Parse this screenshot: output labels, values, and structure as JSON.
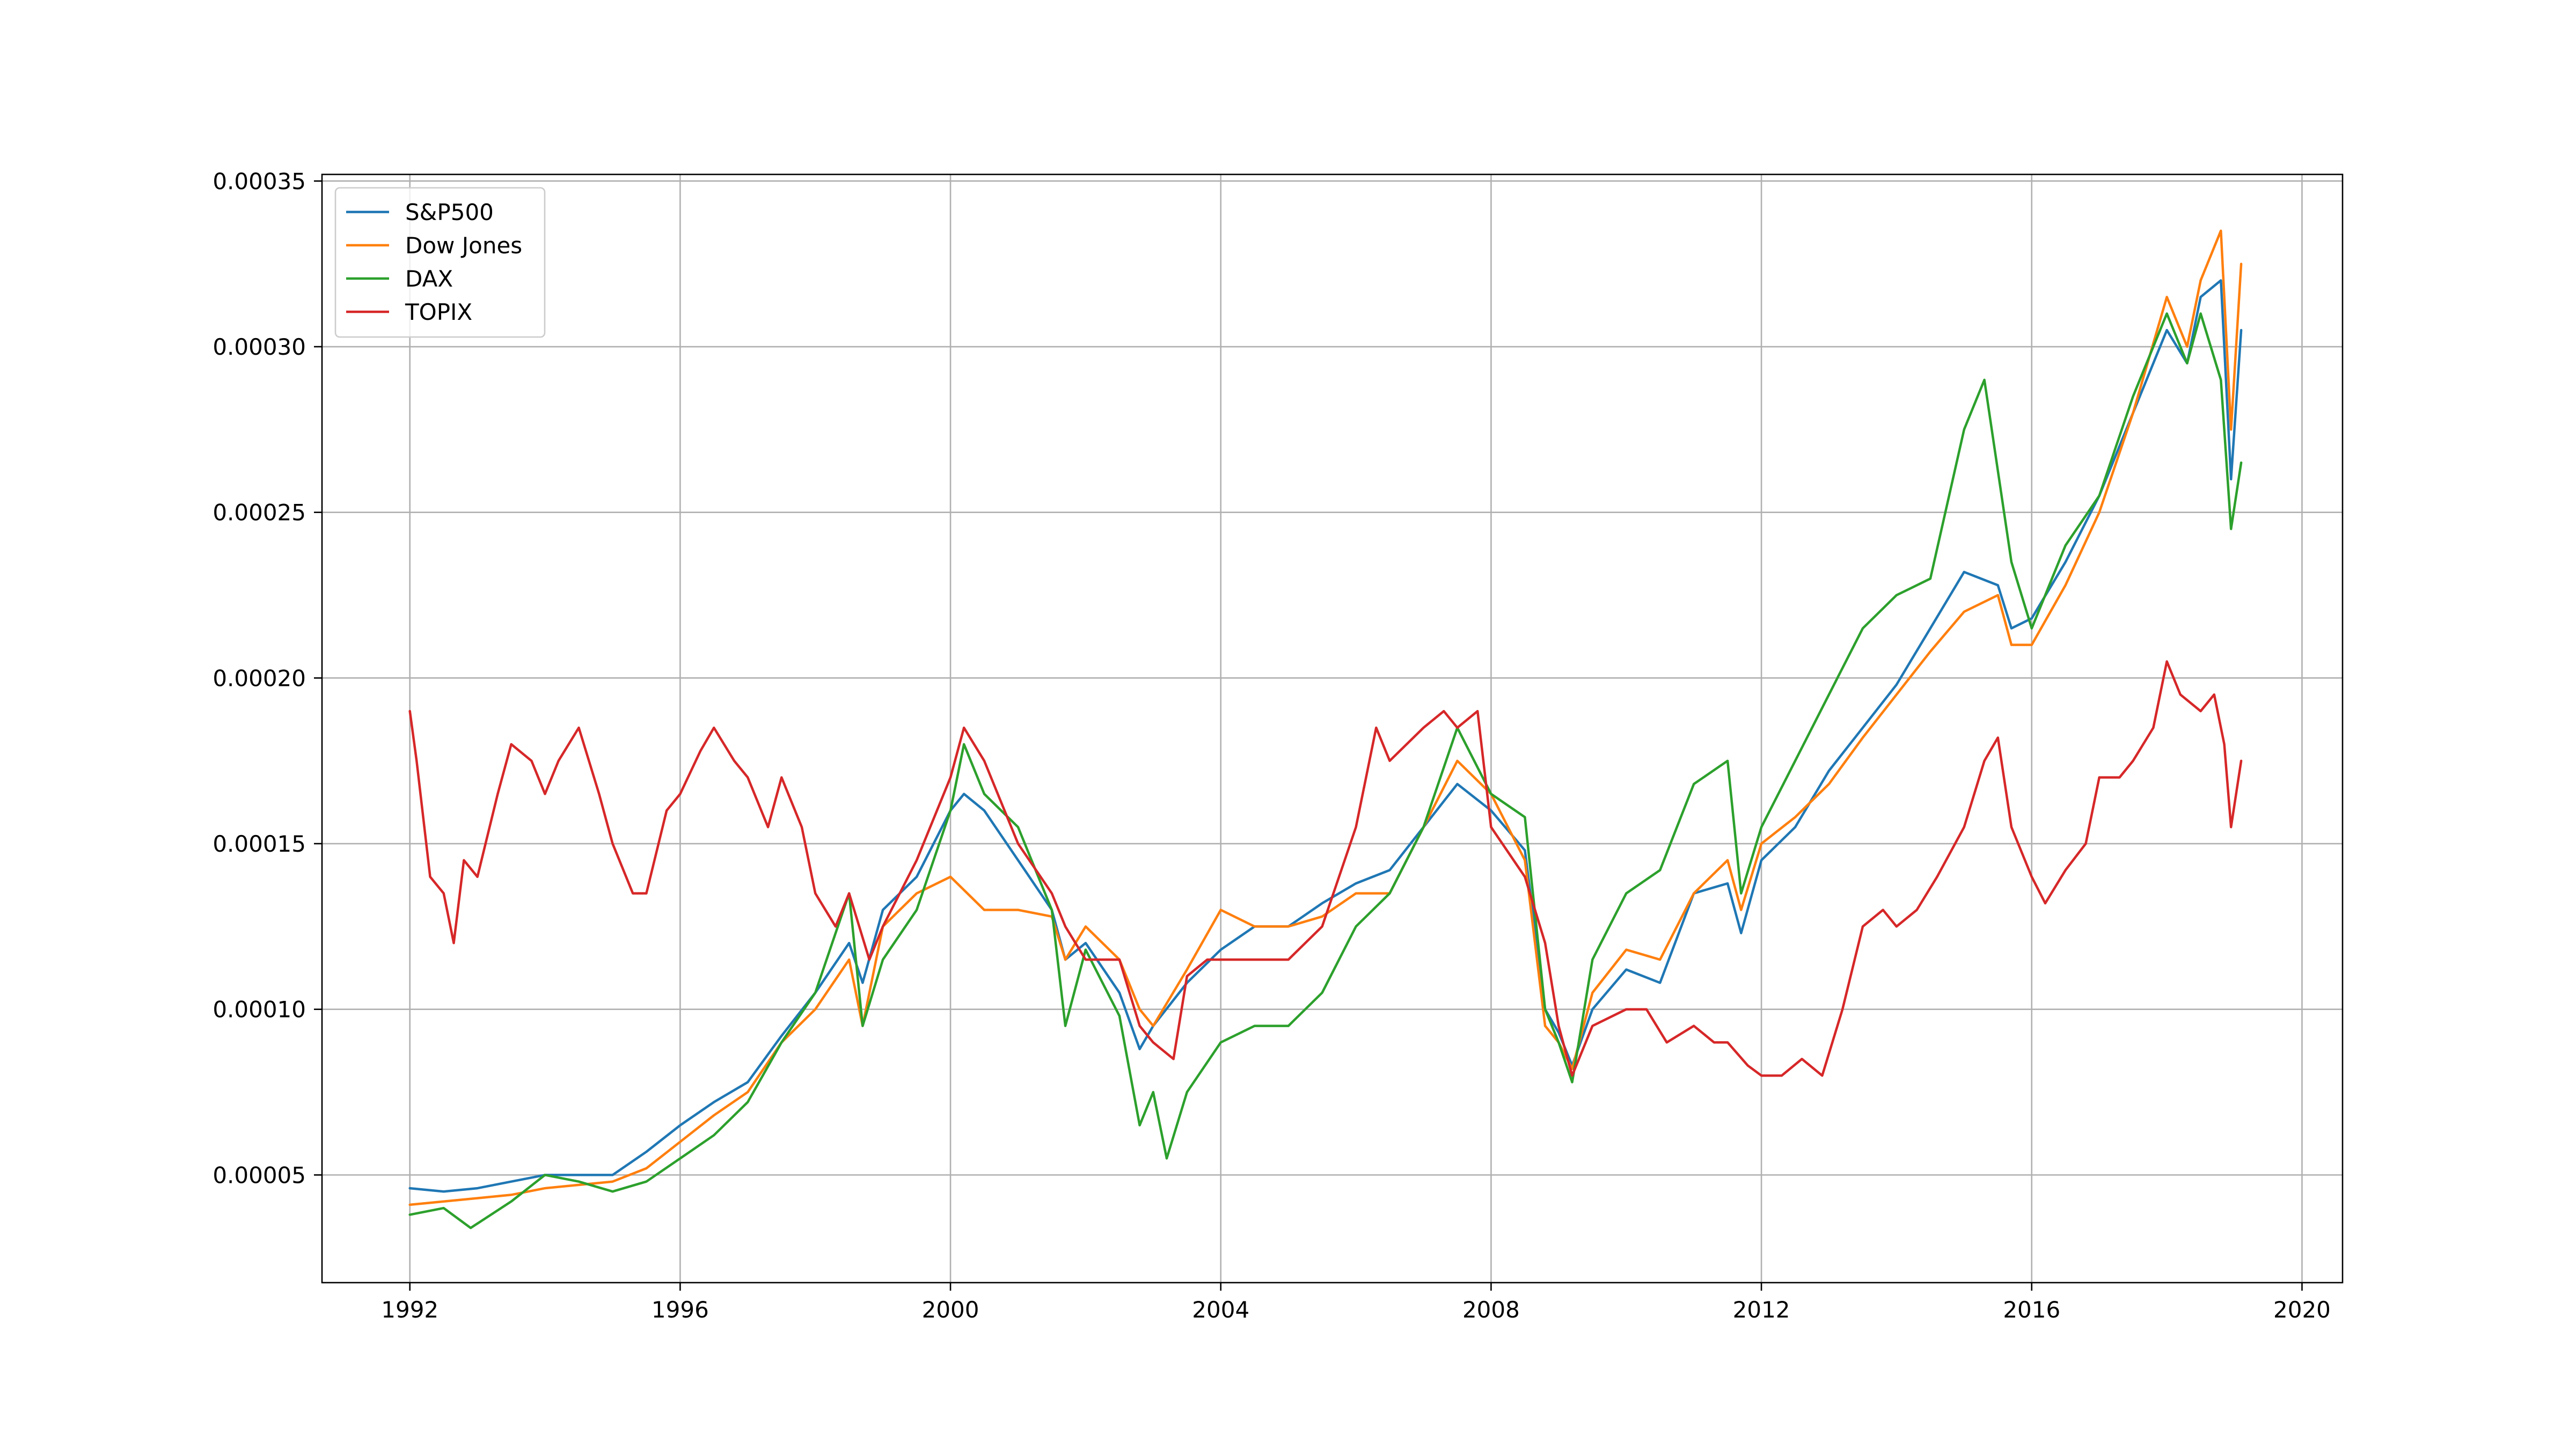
{
  "chart_data": {
    "type": "line",
    "title": "",
    "xlabel": "",
    "ylabel": "",
    "xlim": [
      1990.7,
      2020.6
    ],
    "ylim": [
      1.75e-05,
      0.000352
    ],
    "x_ticks": [
      1992,
      1996,
      2000,
      2004,
      2008,
      2012,
      2016,
      2020
    ],
    "x_tick_labels": [
      "1992",
      "1996",
      "2000",
      "2004",
      "2008",
      "2012",
      "2016",
      "2020"
    ],
    "y_ticks": [
      5e-05,
      0.0001,
      0.00015,
      0.0002,
      0.00025,
      0.0003,
      0.00035
    ],
    "y_tick_labels": [
      "0.00005",
      "0.00010",
      "0.00015",
      "0.00020",
      "0.00025",
      "0.00030",
      "0.00035"
    ],
    "grid": true,
    "legend_position": "upper-left",
    "series": [
      {
        "name": "S&P500",
        "color": "#1f77b4",
        "x": [
          1992.0,
          1992.5,
          1993.0,
          1993.5,
          1994.0,
          1994.5,
          1995.0,
          1995.5,
          1996.0,
          1996.5,
          1997.0,
          1997.5,
          1998.0,
          1998.5,
          1998.7,
          1999.0,
          1999.5,
          2000.0,
          2000.2,
          2000.5,
          2001.0,
          2001.5,
          2001.7,
          2002.0,
          2002.5,
          2002.8,
          2003.0,
          2003.5,
          2004.0,
          2004.5,
          2005.0,
          2005.5,
          2006.0,
          2006.5,
          2007.0,
          2007.5,
          2008.0,
          2008.5,
          2008.8,
          2009.0,
          2009.2,
          2009.5,
          2010.0,
          2010.5,
          2011.0,
          2011.5,
          2011.7,
          2012.0,
          2012.5,
          2013.0,
          2013.5,
          2014.0,
          2014.5,
          2015.0,
          2015.5,
          2015.7,
          2016.0,
          2016.5,
          2017.0,
          2017.5,
          2018.0,
          2018.3,
          2018.5,
          2018.8,
          2018.95,
          2019.1
        ],
        "y": [
          4.6e-05,
          4.5e-05,
          4.6e-05,
          4.8e-05,
          5e-05,
          5e-05,
          5e-05,
          5.7e-05,
          6.5e-05,
          7.2e-05,
          7.8e-05,
          9.2e-05,
          0.000105,
          0.00012,
          0.000108,
          0.00013,
          0.00014,
          0.00016,
          0.000165,
          0.00016,
          0.000145,
          0.00013,
          0.000115,
          0.00012,
          0.000105,
          8.8e-05,
          9.5e-05,
          0.000108,
          0.000118,
          0.000125,
          0.000125,
          0.000132,
          0.000138,
          0.000142,
          0.000155,
          0.000168,
          0.00016,
          0.000148,
          0.0001,
          9.3e-05,
          8.3e-05,
          0.0001,
          0.000112,
          0.000108,
          0.000135,
          0.000138,
          0.000123,
          0.000145,
          0.000155,
          0.000172,
          0.000185,
          0.000198,
          0.000215,
          0.000232,
          0.000228,
          0.000215,
          0.000218,
          0.000235,
          0.000255,
          0.00028,
          0.000305,
          0.000295,
          0.000315,
          0.00032,
          0.00026,
          0.000305
        ]
      },
      {
        "name": "Dow Jones",
        "color": "#ff7f0e",
        "x": [
          1992.0,
          1992.5,
          1993.0,
          1993.5,
          1994.0,
          1994.5,
          1995.0,
          1995.5,
          1996.0,
          1996.5,
          1997.0,
          1997.5,
          1998.0,
          1998.5,
          1998.7,
          1999.0,
          1999.5,
          2000.0,
          2000.5,
          2001.0,
          2001.5,
          2001.7,
          2002.0,
          2002.5,
          2002.8,
          2003.0,
          2003.5,
          2004.0,
          2004.5,
          2005.0,
          2005.5,
          2006.0,
          2006.5,
          2007.0,
          2007.5,
          2008.0,
          2008.5,
          2008.8,
          2009.0,
          2009.2,
          2009.5,
          2010.0,
          2010.5,
          2011.0,
          2011.5,
          2011.7,
          2012.0,
          2012.5,
          2013.0,
          2013.5,
          2014.0,
          2014.5,
          2015.0,
          2015.5,
          2015.7,
          2016.0,
          2016.5,
          2017.0,
          2017.5,
          2018.0,
          2018.3,
          2018.5,
          2018.8,
          2018.95,
          2019.1
        ],
        "y": [
          4.1e-05,
          4.2e-05,
          4.3e-05,
          4.4e-05,
          4.6e-05,
          4.7e-05,
          4.8e-05,
          5.2e-05,
          6e-05,
          6.8e-05,
          7.5e-05,
          9e-05,
          0.0001,
          0.000115,
          9.5e-05,
          0.000125,
          0.000135,
          0.00014,
          0.00013,
          0.00013,
          0.000128,
          0.000115,
          0.000125,
          0.000115,
          0.0001,
          9.5e-05,
          0.000112,
          0.00013,
          0.000125,
          0.000125,
          0.000128,
          0.000135,
          0.000135,
          0.000155,
          0.000175,
          0.000165,
          0.000145,
          9.5e-05,
          9e-05,
          8.2e-05,
          0.000105,
          0.000118,
          0.000115,
          0.000135,
          0.000145,
          0.00013,
          0.00015,
          0.000158,
          0.000168,
          0.000182,
          0.000195,
          0.000208,
          0.00022,
          0.000225,
          0.00021,
          0.00021,
          0.000228,
          0.00025,
          0.00028,
          0.000315,
          0.0003,
          0.00032,
          0.000335,
          0.000275,
          0.000325
        ]
      },
      {
        "name": "DAX",
        "color": "#2ca02c",
        "x": [
          1992.0,
          1992.5,
          1992.9,
          1993.5,
          1994.0,
          1994.5,
          1995.0,
          1995.5,
          1996.0,
          1996.5,
          1997.0,
          1997.5,
          1998.0,
          1998.5,
          1998.7,
          1999.0,
          1999.5,
          2000.0,
          2000.2,
          2000.5,
          2001.0,
          2001.5,
          2001.7,
          2002.0,
          2002.5,
          2002.8,
          2003.0,
          2003.2,
          2003.5,
          2004.0,
          2004.5,
          2005.0,
          2005.5,
          2006.0,
          2006.5,
          2007.0,
          2007.5,
          2008.0,
          2008.5,
          2008.8,
          2009.0,
          2009.2,
          2009.5,
          2010.0,
          2010.5,
          2011.0,
          2011.5,
          2011.7,
          2012.0,
          2012.5,
          2013.0,
          2013.5,
          2014.0,
          2014.5,
          2015.0,
          2015.3,
          2015.7,
          2016.0,
          2016.5,
          2017.0,
          2017.5,
          2018.0,
          2018.3,
          2018.5,
          2018.8,
          2018.95,
          2019.1
        ],
        "y": [
          3.8e-05,
          4e-05,
          3.4e-05,
          4.2e-05,
          5e-05,
          4.8e-05,
          4.5e-05,
          4.8e-05,
          5.5e-05,
          6.2e-05,
          7.2e-05,
          9e-05,
          0.000105,
          0.000135,
          9.5e-05,
          0.000115,
          0.00013,
          0.00016,
          0.00018,
          0.000165,
          0.000155,
          0.00013,
          9.5e-05,
          0.000118,
          9.8e-05,
          6.5e-05,
          7.5e-05,
          5.5e-05,
          7.5e-05,
          9e-05,
          9.5e-05,
          9.5e-05,
          0.000105,
          0.000125,
          0.000135,
          0.000155,
          0.000185,
          0.000165,
          0.000158,
          0.0001,
          9e-05,
          7.8e-05,
          0.000115,
          0.000135,
          0.000142,
          0.000168,
          0.000175,
          0.000135,
          0.000155,
          0.000175,
          0.000195,
          0.000215,
          0.000225,
          0.00023,
          0.000275,
          0.00029,
          0.000235,
          0.000215,
          0.00024,
          0.000255,
          0.000285,
          0.00031,
          0.000295,
          0.00031,
          0.00029,
          0.000245,
          0.000265
        ]
      },
      {
        "name": "TOPIX",
        "color": "#d62728",
        "x": [
          1992.0,
          1992.1,
          1992.3,
          1992.5,
          1992.65,
          1992.8,
          1993.0,
          1993.3,
          1993.5,
          1993.8,
          1994.0,
          1994.2,
          1994.5,
          1994.8,
          1995.0,
          1995.3,
          1995.5,
          1995.8,
          1996.0,
          1996.3,
          1996.5,
          1996.8,
          1997.0,
          1997.3,
          1997.5,
          1997.8,
          1998.0,
          1998.3,
          1998.5,
          1998.8,
          1999.0,
          1999.5,
          2000.0,
          2000.2,
          2000.5,
          2001.0,
          2001.5,
          2001.7,
          2002.0,
          2002.5,
          2002.8,
          2003.0,
          2003.3,
          2003.5,
          2003.8,
          2004.0,
          2004.5,
          2005.0,
          2005.5,
          2006.0,
          2006.3,
          2006.5,
          2007.0,
          2007.3,
          2007.5,
          2007.8,
          2008.0,
          2008.5,
          2008.8,
          2009.0,
          2009.2,
          2009.5,
          2010.0,
          2010.3,
          2010.6,
          2011.0,
          2011.3,
          2011.5,
          2011.8,
          2012.0,
          2012.3,
          2012.6,
          2012.9,
          2013.2,
          2013.5,
          2013.8,
          2014.0,
          2014.3,
          2014.6,
          2015.0,
          2015.3,
          2015.5,
          2015.7,
          2016.0,
          2016.2,
          2016.5,
          2016.8,
          2017.0,
          2017.3,
          2017.5,
          2017.8,
          2018.0,
          2018.2,
          2018.5,
          2018.7,
          2018.85,
          2018.95,
          2019.1
        ],
        "y": [
          0.00019,
          0.000175,
          0.00014,
          0.000135,
          0.00012,
          0.000145,
          0.00014,
          0.000165,
          0.00018,
          0.000175,
          0.000165,
          0.000175,
          0.000185,
          0.000165,
          0.00015,
          0.000135,
          0.000135,
          0.00016,
          0.000165,
          0.000178,
          0.000185,
          0.000175,
          0.00017,
          0.000155,
          0.00017,
          0.000155,
          0.000135,
          0.000125,
          0.000135,
          0.000115,
          0.000125,
          0.000145,
          0.00017,
          0.000185,
          0.000175,
          0.00015,
          0.000135,
          0.000125,
          0.000115,
          0.000115,
          9.5e-05,
          9e-05,
          8.5e-05,
          0.00011,
          0.000115,
          0.000115,
          0.000115,
          0.000115,
          0.000125,
          0.000155,
          0.000185,
          0.000175,
          0.000185,
          0.00019,
          0.000185,
          0.00019,
          0.000155,
          0.00014,
          0.00012,
          9.5e-05,
          8e-05,
          9.5e-05,
          0.0001,
          0.0001,
          9e-05,
          9.5e-05,
          9e-05,
          9e-05,
          8.3e-05,
          8e-05,
          8e-05,
          8.5e-05,
          8e-05,
          0.0001,
          0.000125,
          0.00013,
          0.000125,
          0.00013,
          0.00014,
          0.000155,
          0.000175,
          0.000182,
          0.000155,
          0.00014,
          0.000132,
          0.000142,
          0.00015,
          0.00017,
          0.00017,
          0.000175,
          0.000185,
          0.000205,
          0.000195,
          0.00019,
          0.000195,
          0.00018,
          0.000155,
          0.000175
        ]
      }
    ]
  }
}
